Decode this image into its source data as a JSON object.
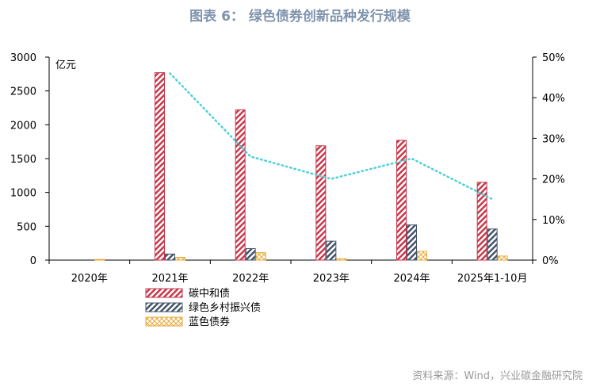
{
  "header": {
    "title": "图表 6： 绿色债券创新品种发行规模"
  },
  "footer": {
    "source": "资料来源：Wind，兴业碳金融研究院"
  },
  "chart_data": {
    "type": "bar",
    "categories": [
      "2020年",
      "2021年",
      "2022年",
      "2023年",
      "2024年",
      "2025年1-10月"
    ],
    "y_unit_label": "亿元",
    "ylim": [
      0,
      3000
    ],
    "yticks": [
      "0",
      "500",
      "1000",
      "1500",
      "2000",
      "2500",
      "3000"
    ],
    "ylim_right": [
      0,
      50
    ],
    "yticks_right": [
      "0%",
      "10%",
      "20%",
      "30%",
      "40%",
      "50%"
    ],
    "series": [
      {
        "name": "碳中和债",
        "values": [
          0,
          2770,
          2220,
          1690,
          1770,
          1150
        ],
        "color": "#c8384a",
        "pattern": "diagonal-stripe"
      },
      {
        "name": "绿色乡村振兴债",
        "values": [
          0,
          90,
          170,
          280,
          520,
          460
        ],
        "color": "#44546a",
        "pattern": "diagonal-stripe"
      },
      {
        "name": "蓝色债券",
        "values": [
          10,
          40,
          110,
          20,
          130,
          60
        ],
        "color": "#e8a838",
        "pattern": "crosshatch"
      }
    ],
    "line_series": {
      "axis": "right",
      "color": "#4fd0d8",
      "style": "dotted",
      "values": [
        null,
        46,
        25.5,
        20,
        25,
        15
      ]
    },
    "grid": false,
    "legend_position": "bottom-left"
  }
}
